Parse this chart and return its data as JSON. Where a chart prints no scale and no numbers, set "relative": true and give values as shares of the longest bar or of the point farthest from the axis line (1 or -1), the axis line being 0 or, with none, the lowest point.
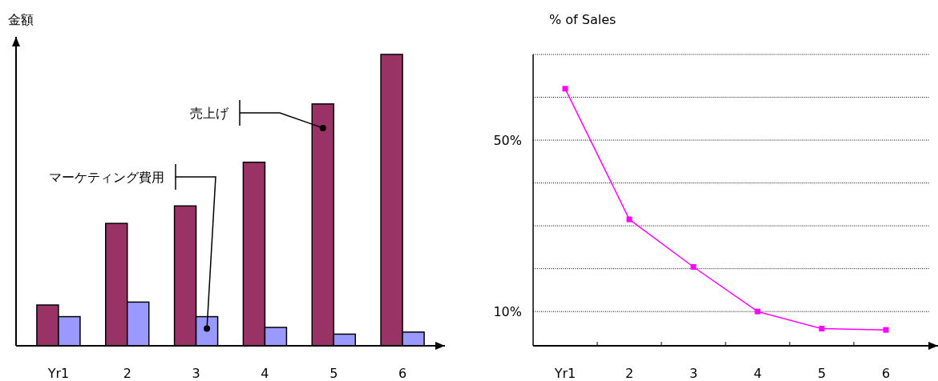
{
  "chart_data": [
    {
      "type": "bar",
      "ylabel": "金額",
      "categories": [
        "Yr1",
        "2",
        "3",
        "4",
        "5",
        "6"
      ],
      "relative": true,
      "legend": "top left",
      "series": [
        {
          "name": "売上げ",
          "color": "#993366",
          "values": [
            0.14,
            0.42,
            0.48,
            0.63,
            0.83,
            1.0
          ]
        },
        {
          "name": "マーケティング費用",
          "color": "#9999ff",
          "values": [
            0.1,
            0.15,
            0.1,
            0.063,
            0.04,
            0.047
          ]
        }
      ]
    },
    {
      "type": "line",
      "title": "% of Sales",
      "categories": [
        "Yr1",
        "2",
        "3",
        "4",
        "5",
        "6"
      ],
      "values": [
        62,
        31.5,
        20.4,
        10,
        6,
        5.7
      ],
      "color": "#ff00ff",
      "marker": "square",
      "grid": "y",
      "ylim": [
        2,
        70
      ],
      "yticks": [
        {
          "value": 10,
          "label": "10%"
        },
        {
          "value": 20,
          "label": null
        },
        {
          "value": 30,
          "label": null
        },
        {
          "value": 40,
          "label": null
        },
        {
          "value": 50,
          "label": "50%"
        },
        {
          "value": 60,
          "label": null
        },
        {
          "value": 70,
          "label": null
        }
      ]
    }
  ]
}
